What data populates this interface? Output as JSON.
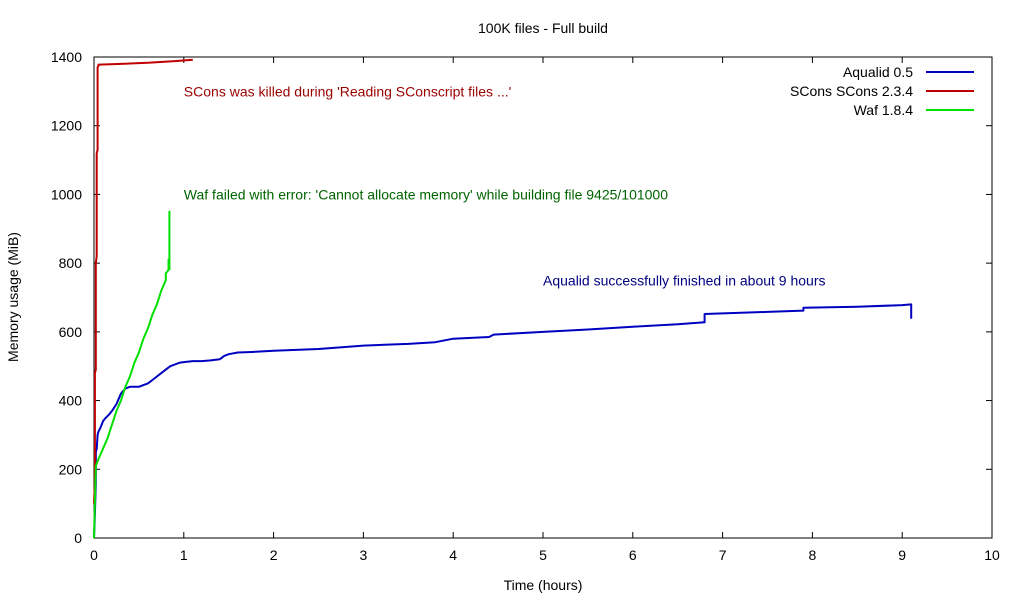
{
  "chart_data": {
    "type": "line",
    "title": "100K files - Full build",
    "xlabel": "Time (hours)",
    "ylabel": "Memory usage (MiB)",
    "xlim": [
      0,
      10
    ],
    "ylim": [
      0,
      1400
    ],
    "xticks": [
      0,
      1,
      2,
      3,
      4,
      5,
      6,
      7,
      8,
      9,
      10
    ],
    "yticks": [
      0,
      200,
      400,
      600,
      800,
      1000,
      1200,
      1400
    ],
    "grid": false,
    "legend_position": "top-right",
    "series": [
      {
        "name": "Aqualid 0.5",
        "color": "#0000c0",
        "x": [
          0.0,
          0.01,
          0.02,
          0.02,
          0.03,
          0.04,
          0.05,
          0.07,
          0.1,
          0.13,
          0.17,
          0.2,
          0.25,
          0.3,
          0.35,
          0.4,
          0.45,
          0.5,
          0.55,
          0.6,
          0.65,
          0.7,
          0.75,
          0.8,
          0.85,
          0.9,
          0.95,
          1.0,
          1.1,
          1.2,
          1.3,
          1.4,
          1.45,
          1.5,
          1.6,
          1.8,
          2.0,
          2.5,
          3.0,
          3.5,
          3.8,
          4.0,
          4.4,
          4.45,
          5.0,
          5.5,
          6.0,
          6.5,
          6.8,
          6.8,
          7.5,
          7.9,
          7.9,
          8.5,
          9.0,
          9.1,
          9.1
        ],
        "values": [
          0,
          70,
          160,
          250,
          260,
          300,
          310,
          320,
          340,
          350,
          360,
          370,
          390,
          420,
          435,
          440,
          440,
          440,
          445,
          450,
          460,
          470,
          480,
          490,
          500,
          505,
          510,
          512,
          515,
          515,
          517,
          520,
          530,
          535,
          540,
          542,
          545,
          550,
          560,
          565,
          570,
          580,
          585,
          592,
          600,
          607,
          615,
          622,
          628,
          652,
          658,
          662,
          670,
          673,
          678,
          680,
          638
        ]
      },
      {
        "name": "SCons SCons 2.3.4",
        "color": "#c00000",
        "x": [
          0.0,
          0.01,
          0.01,
          0.02,
          0.02,
          0.03,
          0.03,
          0.04,
          0.04,
          0.05,
          0.05,
          0.06,
          0.3,
          0.6,
          0.9,
          1.1
        ],
        "values": [
          100,
          160,
          480,
          490,
          800,
          820,
          1120,
          1130,
          1370,
          1375,
          1378,
          1378,
          1380,
          1383,
          1388,
          1392
        ]
      },
      {
        "name": "Waf 1.8.4",
        "color": "#00e000",
        "x": [
          0.0,
          0.02,
          0.05,
          0.1,
          0.15,
          0.2,
          0.25,
          0.3,
          0.35,
          0.4,
          0.45,
          0.5,
          0.55,
          0.6,
          0.65,
          0.7,
          0.75,
          0.8,
          0.8,
          0.83,
          0.83,
          0.84,
          0.84,
          0.84
        ],
        "values": [
          0,
          210,
          230,
          260,
          290,
          330,
          370,
          400,
          440,
          470,
          510,
          540,
          580,
          610,
          650,
          680,
          720,
          750,
          770,
          780,
          810,
          790,
          950,
          780
        ]
      }
    ],
    "annotations": [
      {
        "text": "SCons was killed during 'Reading SConscript files ...'",
        "x": 1.0,
        "y": 1300,
        "color": "#9a0000"
      },
      {
        "text": "Waf failed with error: 'Cannot allocate memory' while building file 9425/101000",
        "x": 1.0,
        "y": 1000,
        "color": "#006400"
      },
      {
        "text": "Aqualid successfully finished in about 9 hours",
        "x": 5.0,
        "y": 750,
        "color": "#00007f"
      }
    ]
  }
}
